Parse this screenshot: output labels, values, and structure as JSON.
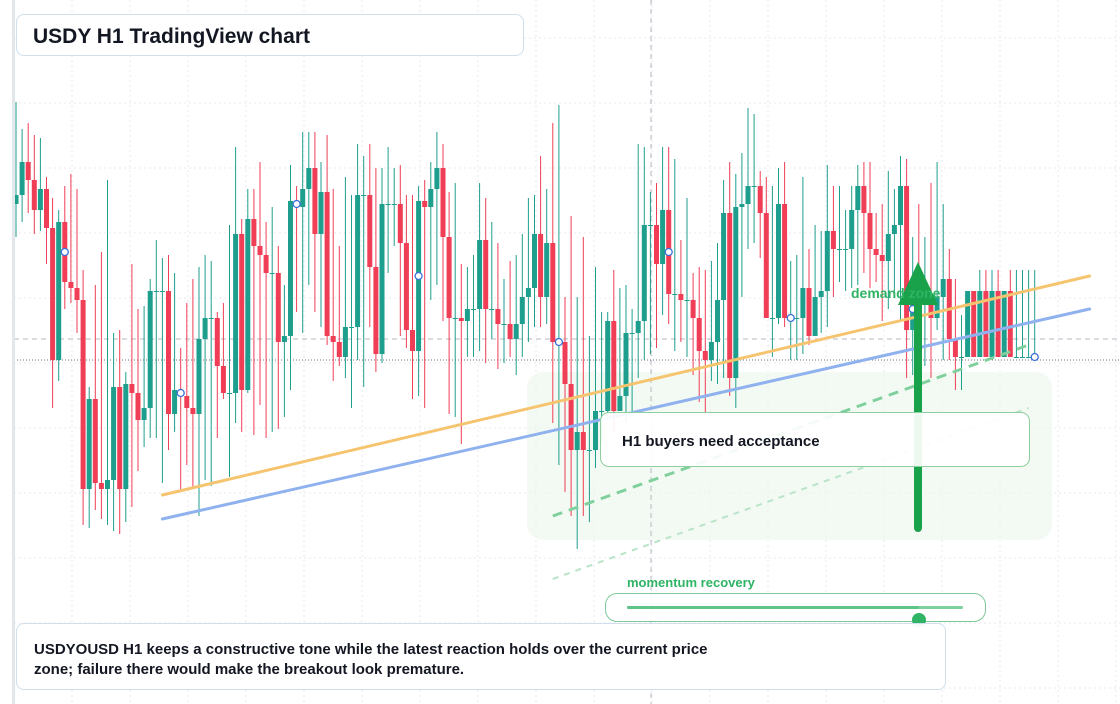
{
  "title": "USDY H1 TradingView chart",
  "note": "H1 buyers need acceptance",
  "zone_label": "demand zone",
  "momentum": {
    "label": "momentum recovery",
    "value": 0.87
  },
  "summary": "USDYOUSD H1 keeps a constructive tone while the latest reaction holds over the current price zone; failure there would make the breakout look premature.",
  "colors": {
    "bull": "#1e9e8c",
    "bear": "#ef3e55",
    "support_line": "#f6c46e",
    "trend_line": "#8fb2ee",
    "arrow": "#19a24a",
    "zone": "#e9f6ea"
  },
  "chart_data": {
    "type": "candlestick",
    "title": "USDY H1 TradingView chart",
    "candles": [
      {
        "o": 0.52,
        "c": 0.55,
        "h": 0.86,
        "l": 0.41
      },
      {
        "o": 0.55,
        "c": 0.66,
        "h": 0.77,
        "l": 0.46
      },
      {
        "o": 0.66,
        "c": 0.6,
        "h": 0.79,
        "l": 0.49
      },
      {
        "o": 0.6,
        "c": 0.5,
        "h": 0.75,
        "l": 0.42
      },
      {
        "o": 0.5,
        "c": 0.57,
        "h": 0.74,
        "l": 0.43
      },
      {
        "o": 0.57,
        "c": 0.44,
        "h": 0.61,
        "l": 0.32
      },
      {
        "o": 0.44,
        "c": 0.0,
        "h": 0.54,
        "l": -0.16
      },
      {
        "o": 0.0,
        "c": 0.46,
        "h": 0.5,
        "l": -0.07
      },
      {
        "o": 0.46,
        "c": 0.26,
        "h": 0.58,
        "l": 0.17
      },
      {
        "o": 0.26,
        "c": 0.24,
        "h": 0.62,
        "l": 0.19
      },
      {
        "o": 0.24,
        "c": 0.2,
        "h": 0.57,
        "l": 0.09
      },
      {
        "o": 0.2,
        "c": -0.43,
        "h": 0.3,
        "l": -0.55
      },
      {
        "o": -0.43,
        "c": -0.13,
        "h": -0.09,
        "l": -0.56
      },
      {
        "o": -0.13,
        "c": -0.41,
        "h": 0.25,
        "l": -0.5
      },
      {
        "o": -0.41,
        "c": -0.43,
        "h": 0.36,
        "l": -0.53
      },
      {
        "o": -0.43,
        "c": -0.4,
        "h": 0.6,
        "l": -0.55
      },
      {
        "o": -0.4,
        "c": -0.09,
        "h": 0.09,
        "l": -0.57
      },
      {
        "o": -0.09,
        "c": -0.43,
        "h": 0.1,
        "l": -0.58
      },
      {
        "o": -0.43,
        "c": -0.08,
        "h": -0.04,
        "l": -0.54
      },
      {
        "o": -0.08,
        "c": -0.11,
        "h": 0.32,
        "l": -0.49
      },
      {
        "o": -0.11,
        "c": -0.2,
        "h": 0.17,
        "l": -0.37
      },
      {
        "o": -0.2,
        "c": -0.16,
        "h": 0.18,
        "l": -0.29
      },
      {
        "o": -0.16,
        "c": 0.23,
        "h": 0.27,
        "l": -0.26
      },
      {
        "o": 0.23,
        "c": 0.23,
        "h": 0.4,
        "l": -0.26
      },
      {
        "o": 0.23,
        "c": 0.23,
        "h": 0.34,
        "l": -0.41
      },
      {
        "o": 0.23,
        "c": -0.18,
        "h": 0.35,
        "l": -0.3
      },
      {
        "o": -0.18,
        "c": -0.1,
        "h": 0.29,
        "l": -0.24
      },
      {
        "o": -0.1,
        "c": -0.12,
        "h": 0.04,
        "l": -0.43
      },
      {
        "o": -0.12,
        "c": -0.16,
        "h": 0.19,
        "l": -0.35
      },
      {
        "o": -0.16,
        "c": -0.18,
        "h": 0.27,
        "l": -0.43
      },
      {
        "o": -0.18,
        "c": 0.07,
        "h": 0.31,
        "l": -0.52
      },
      {
        "o": 0.07,
        "c": 0.14,
        "h": 0.35,
        "l": -0.4
      },
      {
        "o": 0.14,
        "c": 0.14,
        "h": 0.33,
        "l": -0.42
      },
      {
        "o": 0.14,
        "c": -0.02,
        "h": 0.16,
        "l": -0.26
      },
      {
        "o": -0.02,
        "c": -0.11,
        "h": 0.19,
        "l": -0.13
      },
      {
        "o": -0.11,
        "c": -0.11,
        "h": 0.45,
        "l": -0.39
      },
      {
        "o": -0.11,
        "c": 0.42,
        "h": 0.71,
        "l": -0.21
      },
      {
        "o": 0.42,
        "c": -0.1,
        "h": 0.47,
        "l": -0.24
      },
      {
        "o": -0.1,
        "c": 0.47,
        "h": 0.57,
        "l": -0.11
      },
      {
        "o": 0.47,
        "c": 0.38,
        "h": 0.57,
        "l": -0.25
      },
      {
        "o": 0.38,
        "c": 0.35,
        "h": 0.66,
        "l": -0.15
      },
      {
        "o": 0.35,
        "c": 0.29,
        "h": 0.46,
        "l": -0.26
      },
      {
        "o": 0.29,
        "c": 0.29,
        "h": 0.51,
        "l": -0.24
      },
      {
        "o": 0.29,
        "c": 0.06,
        "h": 0.38,
        "l": -0.23
      },
      {
        "o": 0.06,
        "c": 0.08,
        "h": 0.25,
        "l": -0.19
      },
      {
        "o": 0.08,
        "c": 0.53,
        "h": 0.65,
        "l": -0.1
      },
      {
        "o": 0.53,
        "c": 0.51,
        "h": 0.58,
        "l": 0.16
      },
      {
        "o": 0.51,
        "c": 0.57,
        "h": 0.76,
        "l": 0.09
      },
      {
        "o": 0.57,
        "c": 0.64,
        "h": 0.76,
        "l": 0.25
      },
      {
        "o": 0.64,
        "c": 0.42,
        "h": 0.76,
        "l": 0.16
      },
      {
        "o": 0.42,
        "c": 0.56,
        "h": 0.66,
        "l": 0.11
      },
      {
        "o": 0.56,
        "c": 0.08,
        "h": 0.75,
        "l": 0.05
      },
      {
        "o": 0.08,
        "c": 0.06,
        "h": 0.57,
        "l": -0.07
      },
      {
        "o": 0.06,
        "c": 0.01,
        "h": 0.38,
        "l": -0.02
      },
      {
        "o": 0.01,
        "c": 0.11,
        "h": 0.61,
        "l": -0.06
      },
      {
        "o": 0.11,
        "c": 0.11,
        "h": 0.55,
        "l": -0.16
      },
      {
        "o": 0.11,
        "c": 0.55,
        "h": 0.72,
        "l": 0.0
      },
      {
        "o": 0.55,
        "c": 0.55,
        "h": 0.68,
        "l": -0.09
      },
      {
        "o": 0.55,
        "c": 0.31,
        "h": 0.72,
        "l": 0.11
      },
      {
        "o": 0.31,
        "c": 0.02,
        "h": 0.64,
        "l": -0.04
      },
      {
        "o": 0.02,
        "c": 0.52,
        "h": 0.64,
        "l": -0.01
      },
      {
        "o": 0.52,
        "c": 0.52,
        "h": 0.71,
        "l": 0.29
      },
      {
        "o": 0.52,
        "c": 0.52,
        "h": 0.64,
        "l": 0.38
      },
      {
        "o": 0.52,
        "c": 0.39,
        "h": 0.65,
        "l": 0.08
      },
      {
        "o": 0.39,
        "c": 0.1,
        "h": 0.55,
        "l": 0.04
      },
      {
        "o": 0.1,
        "c": 0.03,
        "h": 0.55,
        "l": -0.13
      },
      {
        "o": 0.03,
        "c": 0.53,
        "h": 0.58,
        "l": -0.12
      },
      {
        "o": 0.53,
        "c": 0.51,
        "h": 0.6,
        "l": -0.16
      },
      {
        "o": 0.51,
        "c": 0.57,
        "h": 0.66,
        "l": 0.2
      },
      {
        "o": 0.57,
        "c": 0.64,
        "h": 0.76,
        "l": 0.25
      },
      {
        "o": 0.64,
        "c": 0.41,
        "h": 0.72,
        "l": 0.13
      },
      {
        "o": 0.41,
        "c": 0.14,
        "h": 0.56,
        "l": -0.18
      },
      {
        "o": 0.14,
        "c": 0.14,
        "h": 0.59,
        "l": -0.19
      },
      {
        "o": 0.14,
        "c": 0.13,
        "h": 0.32,
        "l": -0.28
      },
      {
        "o": 0.13,
        "c": 0.17,
        "h": 0.31,
        "l": 0.01
      },
      {
        "o": 0.17,
        "c": 0.17,
        "h": 0.35,
        "l": 0.01
      },
      {
        "o": 0.17,
        "c": 0.4,
        "h": 0.59,
        "l": 0.03
      },
      {
        "o": 0.4,
        "c": 0.17,
        "h": 0.54,
        "l": -0.01
      },
      {
        "o": 0.17,
        "c": 0.17,
        "h": 0.46,
        "l": 0.07
      },
      {
        "o": 0.17,
        "c": 0.12,
        "h": 0.39,
        "l": -0.03
      },
      {
        "o": 0.12,
        "c": 0.12,
        "h": 0.27,
        "l": -0.01
      },
      {
        "o": 0.12,
        "c": 0.07,
        "h": 0.33,
        "l": 0.01
      },
      {
        "o": 0.07,
        "c": 0.12,
        "h": 0.35,
        "l": -0.05
      },
      {
        "o": 0.12,
        "c": 0.21,
        "h": 0.42,
        "l": 0.01
      },
      {
        "o": 0.21,
        "c": 0.24,
        "h": 0.54,
        "l": 0.06
      },
      {
        "o": 0.24,
        "c": 0.42,
        "h": 0.55,
        "l": 0.11
      },
      {
        "o": 0.42,
        "c": 0.21,
        "h": 0.68,
        "l": 0.11
      },
      {
        "o": 0.21,
        "c": 0.39,
        "h": 0.57,
        "l": 0.12
      },
      {
        "o": 0.39,
        "c": 0.06,
        "h": 0.79,
        "l": -0.21
      },
      {
        "o": 0.06,
        "c": 0.06,
        "h": 0.85,
        "l": -0.35
      },
      {
        "o": 0.06,
        "c": -0.08,
        "h": 0.21,
        "l": -0.44
      },
      {
        "o": -0.08,
        "c": -0.3,
        "h": 0.48,
        "l": -0.52
      },
      {
        "o": -0.3,
        "c": -0.24,
        "h": 0.21,
        "l": -0.63
      },
      {
        "o": -0.24,
        "c": -0.3,
        "h": 0.41,
        "l": -0.52
      },
      {
        "o": -0.3,
        "c": -0.3,
        "h": 0.08,
        "l": -0.54
      },
      {
        "o": -0.3,
        "c": -0.17,
        "h": 0.31,
        "l": -0.36
      },
      {
        "o": -0.17,
        "c": -0.17,
        "h": 0.16,
        "l": -0.28
      },
      {
        "o": -0.17,
        "c": 0.13,
        "h": 0.16,
        "l": -0.19
      },
      {
        "o": 0.13,
        "c": -0.17,
        "h": 0.3,
        "l": -0.24
      },
      {
        "o": -0.17,
        "c": -0.12,
        "h": 0.24,
        "l": -0.17
      },
      {
        "o": -0.12,
        "c": 0.09,
        "h": 0.25,
        "l": -0.21
      },
      {
        "o": 0.09,
        "c": 0.09,
        "h": 0.17,
        "l": -0.19
      },
      {
        "o": 0.09,
        "c": 0.13,
        "h": 0.72,
        "l": -0.06
      },
      {
        "o": 0.13,
        "c": 0.45,
        "h": 0.71,
        "l": 0.0
      },
      {
        "o": 0.45,
        "c": 0.45,
        "h": 0.56,
        "l": 0.02
      },
      {
        "o": 0.45,
        "c": 0.32,
        "h": 0.59,
        "l": 0.04
      },
      {
        "o": 0.32,
        "c": 0.5,
        "h": 0.71,
        "l": 0.15
      },
      {
        "o": 0.5,
        "c": 0.22,
        "h": 0.71,
        "l": 0.12
      },
      {
        "o": 0.22,
        "c": 0.22,
        "h": 0.67,
        "l": 0.03
      },
      {
        "o": 0.22,
        "c": 0.2,
        "h": 0.4,
        "l": 0.06
      },
      {
        "o": 0.2,
        "c": 0.2,
        "h": 0.54,
        "l": 0.01
      },
      {
        "o": 0.2,
        "c": 0.14,
        "h": 0.29,
        "l": -0.05
      },
      {
        "o": 0.14,
        "c": 0.03,
        "h": 0.31,
        "l": -0.14
      },
      {
        "o": 0.03,
        "c": 0.0,
        "h": 0.3,
        "l": -0.19
      },
      {
        "o": 0.0,
        "c": 0.06,
        "h": 0.33,
        "l": -0.07
      },
      {
        "o": 0.06,
        "c": 0.2,
        "h": 0.39,
        "l": -0.08
      },
      {
        "o": 0.2,
        "c": 0.49,
        "h": 0.6,
        "l": -0.06
      },
      {
        "o": 0.49,
        "c": -0.06,
        "h": 0.66,
        "l": -0.12
      },
      {
        "o": -0.06,
        "c": 0.51,
        "h": 0.62,
        "l": -0.16
      },
      {
        "o": 0.51,
        "c": 0.52,
        "h": 0.69,
        "l": 0.21
      },
      {
        "o": 0.52,
        "c": 0.58,
        "h": 0.84,
        "l": 0.37
      },
      {
        "o": 0.58,
        "c": 0.58,
        "h": 0.82,
        "l": 0.39
      },
      {
        "o": 0.58,
        "c": 0.49,
        "h": 0.63,
        "l": 0.34
      },
      {
        "o": 0.49,
        "c": 0.14,
        "h": 0.61,
        "l": 0.14
      },
      {
        "o": 0.14,
        "c": 0.14,
        "h": 0.58,
        "l": 0.01
      },
      {
        "o": 0.14,
        "c": 0.52,
        "h": 0.64,
        "l": 0.12
      },
      {
        "o": 0.52,
        "c": 0.14,
        "h": 0.66,
        "l": 0.11
      },
      {
        "o": 0.14,
        "c": 0.14,
        "h": 0.33,
        "l": 0.0
      },
      {
        "o": 0.14,
        "c": 0.14,
        "h": 0.35,
        "l": 0.0
      },
      {
        "o": 0.14,
        "c": 0.24,
        "h": 0.61,
        "l": 0.02
      },
      {
        "o": 0.24,
        "c": 0.08,
        "h": 0.37,
        "l": 0.05
      },
      {
        "o": 0.08,
        "c": 0.21,
        "h": 0.45,
        "l": 0.08
      },
      {
        "o": 0.21,
        "c": 0.23,
        "h": 0.43,
        "l": 0.09
      },
      {
        "o": 0.23,
        "c": 0.43,
        "h": 0.65,
        "l": 0.11
      },
      {
        "o": 0.43,
        "c": 0.37,
        "h": 0.58,
        "l": 0.21
      },
      {
        "o": 0.37,
        "c": 0.37,
        "h": 0.58,
        "l": 0.26
      },
      {
        "o": 0.37,
        "c": 0.37,
        "h": 0.5,
        "l": 0.23
      },
      {
        "o": 0.37,
        "c": 0.5,
        "h": 0.58,
        "l": 0.24
      },
      {
        "o": 0.5,
        "c": 0.58,
        "h": 0.65,
        "l": 0.25
      },
      {
        "o": 0.58,
        "c": 0.49,
        "h": 0.66,
        "l": 0.29
      },
      {
        "o": 0.49,
        "c": 0.37,
        "h": 0.66,
        "l": 0.24
      },
      {
        "o": 0.37,
        "c": 0.35,
        "h": 0.49,
        "l": 0.26
      },
      {
        "o": 0.35,
        "c": 0.33,
        "h": 0.52,
        "l": 0.13
      },
      {
        "o": 0.33,
        "c": 0.42,
        "h": 0.63,
        "l": 0.17
      },
      {
        "o": 0.42,
        "c": 0.45,
        "h": 0.57,
        "l": 0.23
      },
      {
        "o": 0.45,
        "c": 0.58,
        "h": 0.68,
        "l": 0.13
      },
      {
        "o": 0.58,
        "c": 0.1,
        "h": 0.67,
        "l": -0.06
      },
      {
        "o": 0.1,
        "c": 0.24,
        "h": 0.41,
        "l": -0.05
      },
      {
        "o": 0.24,
        "c": 0.21,
        "h": 0.52,
        "l": 0.05
      },
      {
        "o": 0.21,
        "c": 0.21,
        "h": 0.41,
        "l": -0.02
      },
      {
        "o": 0.21,
        "c": 0.14,
        "h": 0.59,
        "l": -0.06
      },
      {
        "o": 0.14,
        "c": 0.21,
        "h": 0.66,
        "l": 0.1
      },
      {
        "o": 0.21,
        "c": 0.27,
        "h": 0.52,
        "l": 0.0
      },
      {
        "o": 0.27,
        "c": 0.07,
        "h": 0.37,
        "l": 0.0
      },
      {
        "o": 0.07,
        "c": 0.01,
        "h": 0.27,
        "l": -0.1
      },
      {
        "o": 0.01,
        "c": 0.01,
        "h": 0.15,
        "l": -0.1
      },
      {
        "o": 0.01,
        "c": 0.23,
        "h": 0.23,
        "l": 0.01
      },
      {
        "o": 0.23,
        "c": 0.01,
        "h": 0.23,
        "l": 0.01
      },
      {
        "o": 0.01,
        "c": 0.23,
        "h": 0.3,
        "l": 0.01
      },
      {
        "o": 0.23,
        "c": 0.01,
        "h": 0.3,
        "l": 0.01
      },
      {
        "o": 0.01,
        "c": 0.23,
        "h": 0.3,
        "l": 0.01
      },
      {
        "o": 0.23,
        "c": 0.01,
        "h": 0.3,
        "l": 0.01
      },
      {
        "o": 0.01,
        "c": 0.23,
        "h": 0.23,
        "l": 0.01
      },
      {
        "o": 0.23,
        "c": 0.01,
        "h": 0.3,
        "l": 0.01
      },
      {
        "o": 0.01,
        "c": 0.01,
        "h": 0.3,
        "l": 0.01
      },
      {
        "o": 0.01,
        "c": 0.01,
        "h": 0.3,
        "l": 0.01
      },
      {
        "o": 0.01,
        "c": 0.01,
        "h": 0.3,
        "l": 0.01
      },
      {
        "o": 0.01,
        "c": 0.01,
        "h": 0.3,
        "l": 0.01
      }
    ],
    "markers": [
      8,
      27,
      46,
      66,
      89,
      107,
      127,
      147,
      167
    ],
    "overlays": {
      "support_line": [
        [
          24,
          -0.45
        ],
        [
          176,
          0.28
        ]
      ],
      "trend_line": [
        [
          24,
          -0.53
        ],
        [
          176,
          0.17
        ]
      ],
      "dashed_green_upper": [
        [
          88,
          -0.52
        ],
        [
          166,
          0.05
        ]
      ],
      "dashed_green_lower": [
        [
          88,
          -0.73
        ],
        [
          166,
          -0.16
        ]
      ]
    },
    "current_price": 0.01,
    "grid": true
  }
}
